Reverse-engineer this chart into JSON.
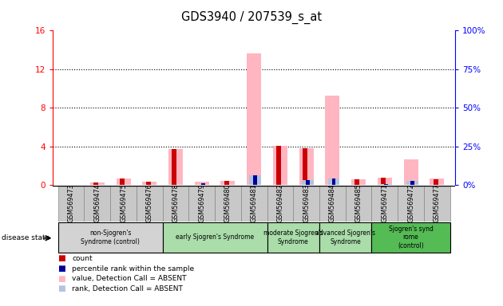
{
  "title": "GDS3940 / 207539_s_at",
  "samples": [
    "GSM569473",
    "GSM569474",
    "GSM569475",
    "GSM569476",
    "GSM569478",
    "GSM569479",
    "GSM569480",
    "GSM569481",
    "GSM569482",
    "GSM569483",
    "GSM569484",
    "GSM569485",
    "GSM569471",
    "GSM569472",
    "GSM569477"
  ],
  "count_red": [
    0,
    0.25,
    0.65,
    0.35,
    3.7,
    0,
    0.45,
    0,
    4.1,
    3.8,
    0,
    0.6,
    0.75,
    0,
    0.6
  ],
  "rank_blue": [
    0.08,
    0.15,
    0.2,
    0.15,
    0.2,
    1.4,
    0.2,
    6.3,
    0.2,
    3.1,
    4.3,
    0.15,
    0.6,
    2.8,
    0.15
  ],
  "value_pink": [
    0.05,
    0.25,
    0.65,
    0.35,
    3.7,
    0.35,
    0.45,
    13.6,
    4.1,
    3.8,
    9.3,
    0.6,
    0.75,
    2.7,
    0.7
  ],
  "rank_lightblue": [
    0.08,
    0.15,
    0.2,
    0.15,
    0.2,
    0.05,
    0.2,
    6.3,
    0.2,
    3.1,
    4.3,
    0.15,
    0.6,
    2.8,
    0.15
  ],
  "ylim_left": [
    0,
    16
  ],
  "ylim_right": [
    0,
    100
  ],
  "yticks_left": [
    0,
    4,
    8,
    12,
    16
  ],
  "yticks_right": [
    0,
    25,
    50,
    75,
    100
  ],
  "group_configs": [
    {
      "label": "non-Sjogren's\nSyndrome (control)",
      "indices": [
        0,
        1,
        2,
        3
      ],
      "color": "#d3d3d3"
    },
    {
      "label": "early Sjogren's Syndrome",
      "indices": [
        4,
        5,
        6,
        7
      ],
      "color": "#aaddaa"
    },
    {
      "label": "moderate Sjogren's\nSyndrome",
      "indices": [
        8,
        9
      ],
      "color": "#aaddaa"
    },
    {
      "label": "advanced Sjogren's\nSyndrome",
      "indices": [
        10,
        11
      ],
      "color": "#aaddaa"
    },
    {
      "label": "Sjogren's synd\nrome\n(control)",
      "indices": [
        12,
        13,
        14
      ],
      "color": "#55bb55"
    }
  ],
  "disease_state_label": "disease state",
  "legend_items": [
    {
      "color": "#cc0000",
      "label": "count"
    },
    {
      "color": "#000099",
      "label": "percentile rank within the sample"
    },
    {
      "color": "#ffb6c1",
      "label": "value, Detection Call = ABSENT"
    },
    {
      "color": "#b0c4de",
      "label": "rank, Detection Call = ABSENT"
    }
  ]
}
